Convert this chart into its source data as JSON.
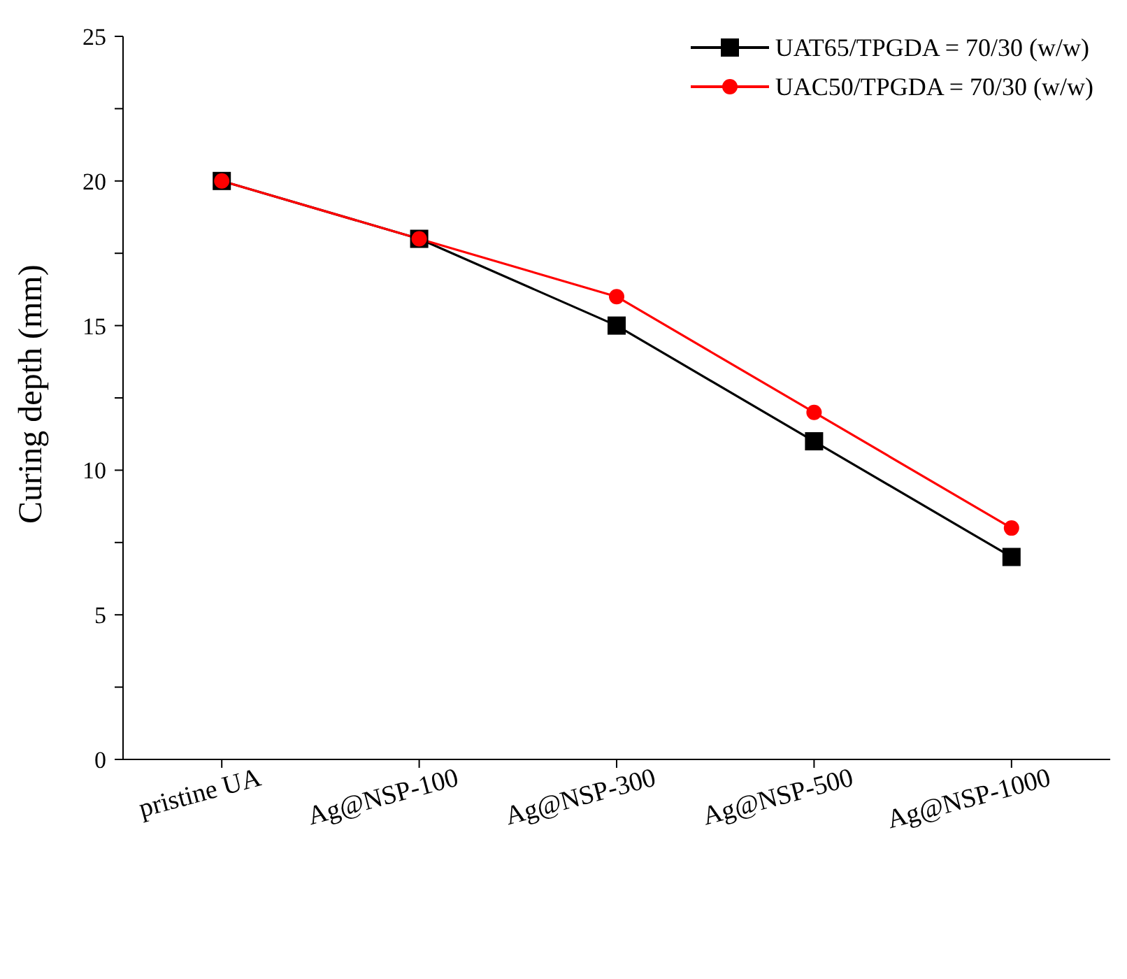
{
  "chart_data": {
    "type": "line",
    "ylabel": "Curing depth (mm)",
    "categories": [
      "pristine UA",
      "Ag@NSP-100",
      "Ag@NSP-300",
      "Ag@NSP-500",
      "Ag@NSP-1000"
    ],
    "series": [
      {
        "name": "UAT65/TPGDA = 70/30 (w/w)",
        "color": "#000000",
        "marker": "square",
        "values": [
          20,
          18,
          15,
          11,
          7
        ]
      },
      {
        "name": "UAC50/TPGDA = 70/30 (w/w)",
        "color": "#ff0000",
        "marker": "circle",
        "values": [
          20,
          18,
          16,
          12,
          8
        ]
      }
    ],
    "ylim": [
      0,
      25
    ],
    "yticks": [
      0,
      {
        "value": 2.5,
        "label": null
      },
      5,
      {
        "value": 7.5,
        "label": null
      },
      10,
      {
        "value": 12.5,
        "label": null
      },
      15,
      {
        "value": 17.5,
        "label": null
      },
      20,
      {
        "value": 22.5,
        "label": null
      },
      25
    ],
    "grid": false,
    "legend": "top right",
    "line_style": "solid"
  }
}
